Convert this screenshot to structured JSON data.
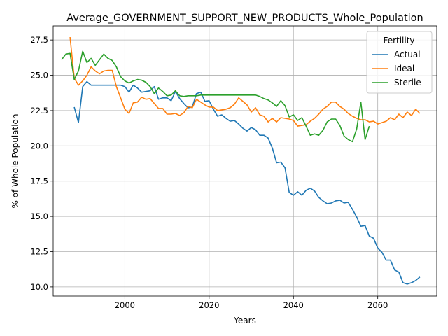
{
  "chart_data": {
    "type": "line",
    "title": "Average_GOVERNMENT_SUPPORT_NEW_PRODUCTS_Whole_Population",
    "xlabel": "Years",
    "ylabel": "% of Whole Population",
    "xlim": [
      1983,
      2074
    ],
    "ylim": [
      9.35,
      28.5
    ],
    "xticks": [
      2000,
      2020,
      2040,
      2060
    ],
    "yticks": [
      10.0,
      12.5,
      15.0,
      17.5,
      20.0,
      22.5,
      25.0,
      27.5
    ],
    "ytick_labels": [
      "10.0",
      "12.5",
      "15.0",
      "17.5",
      "20.0",
      "22.5",
      "25.0",
      "27.5"
    ],
    "grid": true,
    "legend": {
      "title": "Fertility",
      "placement": "top-right"
    },
    "series": [
      {
        "name": "Actual",
        "color": "#1f77b4",
        "x": [
          1988,
          1989,
          1990,
          1991,
          1992,
          1993,
          1994,
          1995,
          1996,
          1997,
          1998,
          1999,
          2000,
          2001,
          2002,
          2003,
          2004,
          2005,
          2006,
          2007,
          2008,
          2009,
          2010,
          2011,
          2012,
          2013,
          2014,
          2015,
          2016,
          2017,
          2018,
          2019,
          2020,
          2021,
          2022,
          2023,
          2024,
          2025,
          2026,
          2027,
          2028,
          2029,
          2030,
          2031,
          2032,
          2033,
          2034,
          2035,
          2036,
          2037,
          2038,
          2039,
          2040,
          2041,
          2042,
          2043,
          2044,
          2045,
          2046,
          2047,
          2048,
          2049,
          2050,
          2051,
          2052,
          2053,
          2054,
          2055,
          2056,
          2057,
          2058,
          2059,
          2060,
          2061,
          2062,
          2063,
          2064,
          2065,
          2066,
          2067,
          2068,
          2069,
          2070
        ],
        "values": [
          22.75,
          21.65,
          24.2,
          24.55,
          24.3,
          24.3,
          24.3,
          24.3,
          24.3,
          24.3,
          24.3,
          24.3,
          24.2,
          23.8,
          24.3,
          24.1,
          23.8,
          23.85,
          23.9,
          24.2,
          23.3,
          23.4,
          23.4,
          23.2,
          23.85,
          23.35,
          23.0,
          22.7,
          22.75,
          23.7,
          23.8,
          23.15,
          23.2,
          22.6,
          22.1,
          22.2,
          21.95,
          21.75,
          21.8,
          21.55,
          21.25,
          21.05,
          21.3,
          21.15,
          20.75,
          20.75,
          20.55,
          19.85,
          18.8,
          18.85,
          18.45,
          16.7,
          16.5,
          16.75,
          16.5,
          16.85,
          17.0,
          16.8,
          16.35,
          16.1,
          15.9,
          15.95,
          16.1,
          16.15,
          15.95,
          16.0,
          15.5,
          14.95,
          14.3,
          14.35,
          13.6,
          13.45,
          12.75,
          12.45,
          11.9,
          11.9,
          11.2,
          11.05,
          10.3,
          10.2,
          10.3,
          10.45,
          10.7
        ]
      },
      {
        "name": "Ideal",
        "color": "#ff7f0e",
        "x": [
          1987,
          1988,
          1989,
          1990,
          1991,
          1992,
          1993,
          1994,
          1995,
          1996,
          1997,
          1998,
          1999,
          2000,
          2001,
          2002,
          2003,
          2004,
          2005,
          2006,
          2007,
          2008,
          2009,
          2010,
          2011,
          2012,
          2013,
          2014,
          2015,
          2016,
          2017,
          2018,
          2019,
          2020,
          2021,
          2022,
          2023,
          2024,
          2025,
          2026,
          2027,
          2028,
          2029,
          2030,
          2031,
          2032,
          2033,
          2034,
          2035,
          2036,
          2037,
          2038,
          2039,
          2040,
          2041,
          2042,
          2043,
          2044,
          2045,
          2046,
          2047,
          2048,
          2049,
          2050,
          2051,
          2052,
          2053,
          2054,
          2055,
          2056,
          2057,
          2058,
          2059,
          2060,
          2061,
          2062,
          2063,
          2064,
          2065,
          2066,
          2067,
          2068,
          2069,
          2070
        ],
        "values": [
          27.7,
          24.8,
          24.3,
          24.6,
          25.0,
          25.6,
          25.3,
          25.1,
          25.3,
          25.35,
          25.35,
          24.2,
          23.4,
          22.6,
          22.3,
          23.05,
          23.1,
          23.45,
          23.3,
          23.35,
          23.0,
          22.65,
          22.65,
          22.25,
          22.25,
          22.3,
          22.15,
          22.35,
          22.8,
          22.7,
          23.3,
          23.1,
          22.9,
          22.75,
          22.75,
          22.5,
          22.55,
          22.6,
          22.7,
          22.95,
          23.4,
          23.15,
          22.9,
          22.4,
          22.7,
          22.2,
          22.1,
          21.7,
          21.95,
          21.7,
          22.0,
          21.95,
          21.9,
          21.8,
          21.4,
          21.45,
          21.5,
          21.75,
          21.95,
          22.25,
          22.6,
          22.8,
          23.1,
          23.1,
          22.8,
          22.6,
          22.3,
          22.1,
          21.95,
          21.85,
          21.85,
          21.7,
          21.75,
          21.55,
          21.65,
          21.75,
          22.0,
          21.85,
          22.25,
          22.0,
          22.4,
          22.15,
          22.6,
          22.3
        ]
      },
      {
        "name": "Sterile",
        "color": "#2ca02c",
        "x": [
          1985,
          1986,
          1987,
          1988,
          1989,
          1990,
          1991,
          1992,
          1993,
          1994,
          1995,
          1996,
          1997,
          1998,
          1999,
          2000,
          2001,
          2002,
          2003,
          2004,
          2005,
          2006,
          2007,
          2008,
          2009,
          2010,
          2011,
          2012,
          2013,
          2014,
          2015,
          2016,
          2017,
          2018,
          2019,
          2020,
          2021,
          2022,
          2023,
          2024,
          2025,
          2026,
          2027,
          2028,
          2029,
          2030,
          2031,
          2032,
          2033,
          2034,
          2035,
          2036,
          2037,
          2038,
          2039,
          2040,
          2041,
          2042,
          2043,
          2044,
          2045,
          2046,
          2047,
          2048,
          2049,
          2050,
          2051,
          2052,
          2053,
          2054,
          2055,
          2056,
          2057,
          2058
        ],
        "values": [
          26.1,
          26.5,
          26.55,
          24.7,
          25.3,
          26.7,
          25.9,
          26.2,
          25.7,
          26.1,
          26.5,
          26.2,
          26.05,
          25.6,
          24.9,
          24.6,
          24.45,
          24.6,
          24.7,
          24.65,
          24.5,
          24.2,
          23.7,
          24.1,
          23.85,
          23.55,
          23.6,
          23.9,
          23.55,
          23.5,
          23.55,
          23.55,
          23.55,
          23.6,
          23.6,
          23.6,
          23.6,
          23.6,
          23.6,
          23.6,
          23.6,
          23.6,
          23.6,
          23.6,
          23.6,
          23.6,
          23.6,
          23.5,
          23.35,
          23.25,
          23.05,
          22.8,
          23.2,
          22.85,
          22.05,
          22.2,
          21.8,
          22.0,
          21.4,
          20.75,
          20.85,
          20.75,
          21.1,
          21.7,
          21.9,
          21.9,
          21.45,
          20.7,
          20.45,
          20.3,
          21.2,
          23.1,
          20.45,
          21.4
        ]
      }
    ]
  }
}
